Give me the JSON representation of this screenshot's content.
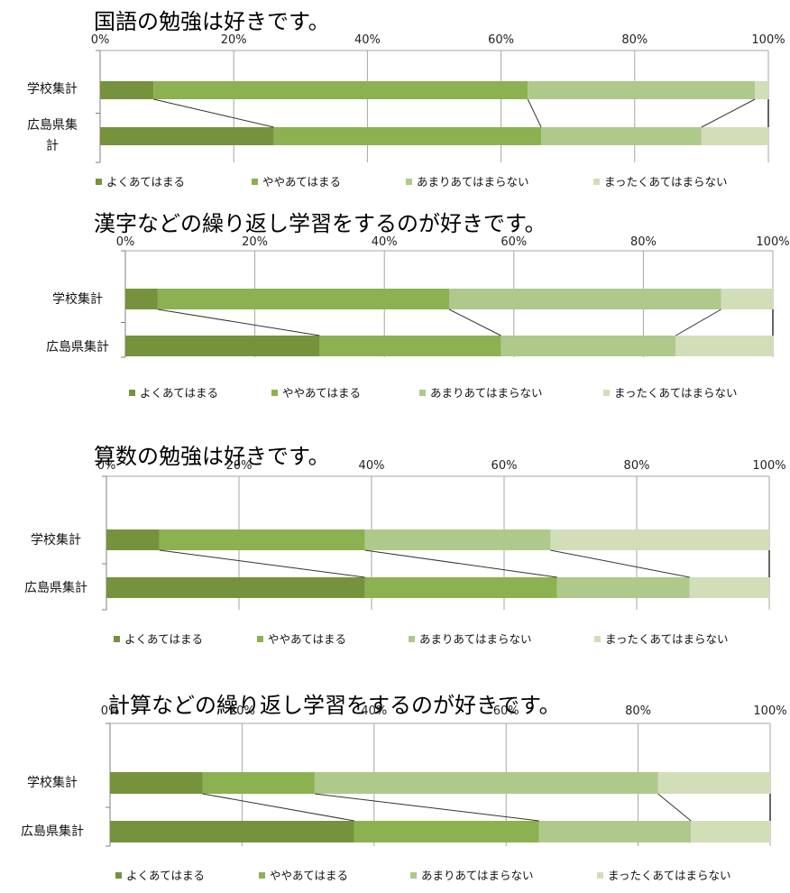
{
  "colors": {
    "yoku": "#76923c",
    "yaya": "#8cb150",
    "amari": "#afc98b",
    "mattaku": "#d1deb8",
    "grid": "#a6a6a6",
    "axis": "#7f7f7f",
    "connector": "#333333"
  },
  "chart_data": [
    {
      "type": "bar",
      "stacked": true,
      "orientation": "horizontal",
      "title": "国語の勉強は好きです。",
      "categories": [
        "学校集計",
        "広島県集計"
      ],
      "category_lines": [
        [
          "学校集計"
        ],
        [
          "広島県集",
          "計"
        ]
      ],
      "xticks": [
        "0%",
        "20%",
        "40%",
        "60%",
        "80%",
        "100%"
      ],
      "xlim": [
        0,
        100
      ],
      "series": [
        {
          "name": "よくあてはまる",
          "values": [
            8,
            26
          ]
        },
        {
          "name": "ややあてはまる",
          "values": [
            56,
            40
          ]
        },
        {
          "name": "あまりあてはまらない",
          "values": [
            34,
            24
          ]
        },
        {
          "name": "まったくあてはまらない",
          "values": [
            2,
            10
          ]
        }
      ],
      "legend": "bottom"
    },
    {
      "type": "bar",
      "stacked": true,
      "orientation": "horizontal",
      "title": "漢字などの繰り返し学習をするのが好きです。",
      "categories": [
        "学校集計",
        "広島県集計"
      ],
      "category_lines": [
        [
          "学校集計"
        ],
        [
          "広島県集計"
        ]
      ],
      "xticks": [
        "0%",
        "20%",
        "40%",
        "60%",
        "80%",
        "100%"
      ],
      "xlim": [
        0,
        100
      ],
      "series": [
        {
          "name": "よくあてはまる",
          "values": [
            5,
            30
          ]
        },
        {
          "name": "ややあてはまる",
          "values": [
            45,
            28
          ]
        },
        {
          "name": "あまりあてはまらない",
          "values": [
            42,
            27
          ]
        },
        {
          "name": "まったくあてはまらない",
          "values": [
            8,
            15
          ]
        }
      ],
      "legend": "bottom"
    },
    {
      "type": "bar",
      "stacked": true,
      "orientation": "horizontal",
      "title": "算数の勉強は好きです。",
      "categories": [
        "学校集計",
        "広島県集計"
      ],
      "category_lines": [
        [
          "学校集計"
        ],
        [
          "広島県集計"
        ]
      ],
      "xticks": [
        "0%",
        "20%",
        "40%",
        "60%",
        "80%",
        "100%"
      ],
      "xlim": [
        0,
        100
      ],
      "series": [
        {
          "name": "よくあてはまる",
          "values": [
            8,
            39
          ]
        },
        {
          "name": "ややあてはまる",
          "values": [
            31,
            29
          ]
        },
        {
          "name": "あまりあてはまらない",
          "values": [
            28,
            20
          ]
        },
        {
          "name": "まったくあてはまらない",
          "values": [
            33,
            12
          ]
        }
      ],
      "legend": "bottom"
    },
    {
      "type": "bar",
      "stacked": true,
      "orientation": "horizontal",
      "title": "計算などの繰り返し学習をするのが好きです。",
      "categories": [
        "学校集計",
        "広島県集計"
      ],
      "category_lines": [
        [
          "学校集計"
        ],
        [
          "広島県集計"
        ]
      ],
      "xticks": [
        "0%",
        "20%",
        "40%",
        "60%",
        "80%",
        "100%"
      ],
      "xlim": [
        0,
        100
      ],
      "series": [
        {
          "name": "よくあてはまる",
          "values": [
            14,
            37
          ]
        },
        {
          "name": "ややあてはまる",
          "values": [
            17,
            28
          ]
        },
        {
          "name": "あまりあてはまらない",
          "values": [
            52,
            23
          ]
        },
        {
          "name": "まったくあてはまらない",
          "values": [
            17,
            12
          ]
        }
      ],
      "legend": "bottom"
    }
  ]
}
